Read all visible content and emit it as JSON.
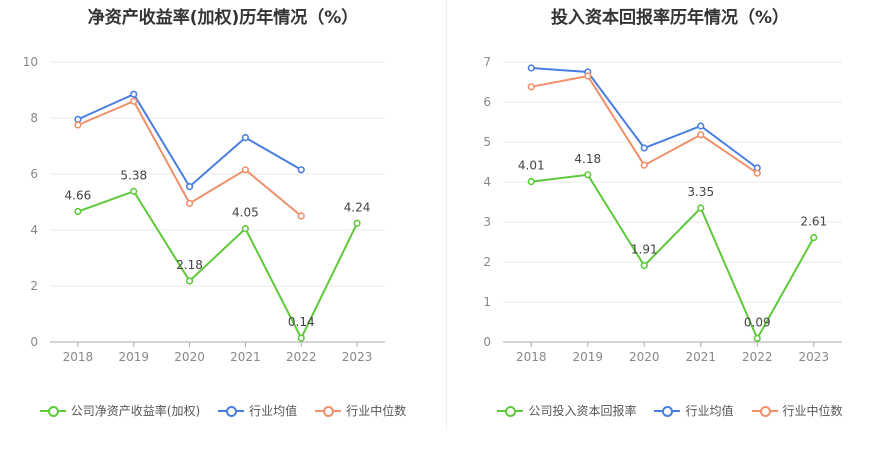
{
  "chart_data": [
    {
      "type": "line",
      "title": "净资产收益率(加权)历年情况（%）",
      "categories": [
        "2018",
        "2019",
        "2020",
        "2021",
        "2022",
        "2023"
      ],
      "ylim": [
        0,
        10
      ],
      "yticks": [
        0,
        2,
        4,
        6,
        8,
        10
      ],
      "grid": true,
      "legend_position": "bottom",
      "series": [
        {
          "name": "公司净资产收益率(加权)",
          "color": "#5ec93b",
          "values": [
            4.66,
            5.38,
            2.18,
            4.05,
            0.14,
            4.24
          ],
          "labels": [
            "4.66",
            "5.38",
            "2.18",
            "4.05",
            "0.14",
            "4.24"
          ]
        },
        {
          "name": "行业均值",
          "color": "#4a7ee0",
          "values": [
            7.95,
            8.85,
            5.55,
            7.3,
            6.15,
            null
          ]
        },
        {
          "name": "行业中位数",
          "color": "#f0906a",
          "values": [
            7.75,
            8.6,
            4.95,
            6.15,
            4.5,
            null
          ]
        }
      ]
    },
    {
      "type": "line",
      "title": "投入资本回报率历年情况（%）",
      "categories": [
        "2018",
        "2019",
        "2020",
        "2021",
        "2022",
        "2023"
      ],
      "ylim": [
        0,
        7
      ],
      "yticks": [
        0,
        1,
        2,
        3,
        4,
        5,
        6,
        7
      ],
      "grid": true,
      "legend_position": "bottom",
      "series": [
        {
          "name": "公司投入资本回报率",
          "color": "#5ec93b",
          "values": [
            4.01,
            4.18,
            1.91,
            3.35,
            0.09,
            2.61
          ],
          "labels": [
            "4.01",
            "4.18",
            "1.91",
            "3.35",
            "0.09",
            "2.61"
          ]
        },
        {
          "name": "行业均值",
          "color": "#4a7ee0",
          "values": [
            6.85,
            6.75,
            4.85,
            5.4,
            4.35,
            null
          ]
        },
        {
          "name": "行业中位数",
          "color": "#f0906a",
          "values": [
            6.38,
            6.65,
            4.42,
            5.18,
            4.22,
            null
          ]
        }
      ]
    }
  ]
}
